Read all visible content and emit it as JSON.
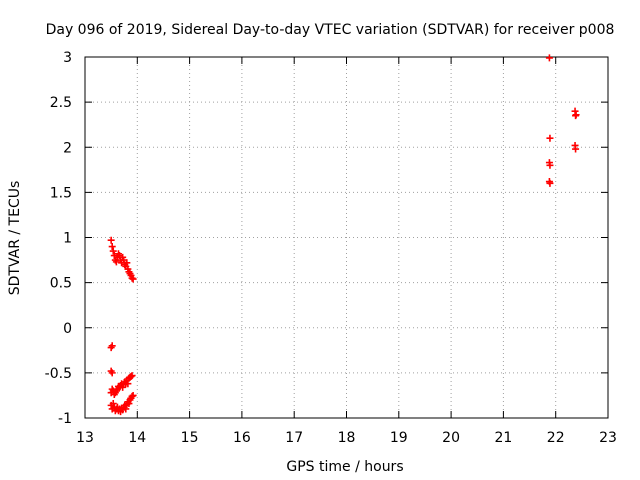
{
  "chart_data": {
    "type": "scatter",
    "title": "Day 096 of 2019, Sidereal Day-to-day VTEC variation (SDTVAR) for receiver p008",
    "xlabel": "GPS time / hours",
    "ylabel": "SDTVAR / TECUs",
    "xlim": [
      13,
      23
    ],
    "ylim": [
      -1,
      3
    ],
    "xticks": [
      13,
      14,
      15,
      16,
      17,
      18,
      19,
      20,
      21,
      22,
      23
    ],
    "yticks": [
      -1,
      -0.5,
      0,
      0.5,
      1,
      1.5,
      2,
      2.5,
      3
    ],
    "xtick_labels": [
      "13",
      "14",
      "15",
      "16",
      "17",
      "18",
      "19",
      "20",
      "21",
      "22",
      "23"
    ],
    "ytick_labels": [
      "-1",
      "-0.5",
      "0",
      "0.5",
      "1",
      "1.5",
      "2",
      "2.5",
      "3"
    ],
    "grid": true,
    "marker": "plus",
    "marker_color": "#ff0000",
    "series": [
      {
        "name": "SDTVAR",
        "x": [
          13.5,
          13.52,
          13.54,
          13.56,
          13.58,
          13.6,
          13.62,
          13.64,
          13.66,
          13.68,
          13.7,
          13.72,
          13.74,
          13.76,
          13.78,
          13.8,
          13.82,
          13.84,
          13.86,
          13.88,
          13.9,
          13.92,
          13.5,
          13.52,
          13.5,
          13.52,
          13.5,
          13.52,
          13.54,
          13.56,
          13.58,
          13.6,
          13.62,
          13.64,
          13.66,
          13.68,
          13.7,
          13.72,
          13.74,
          13.76,
          13.78,
          13.8,
          13.82,
          13.84,
          13.86,
          13.88,
          13.9,
          13.5,
          13.52,
          13.54,
          13.56,
          13.58,
          13.6,
          13.62,
          13.64,
          13.66,
          13.68,
          13.7,
          13.72,
          13.74,
          13.76,
          13.78,
          13.8,
          13.82,
          13.84,
          13.86,
          13.88,
          13.9,
          13.92,
          21.88,
          21.89,
          21.88,
          21.89,
          21.88,
          21.89,
          22.37,
          22.38,
          22.37,
          22.38,
          22.39
        ],
        "y": [
          0.97,
          0.9,
          0.85,
          0.8,
          0.75,
          0.73,
          0.78,
          0.82,
          0.8,
          0.75,
          0.72,
          0.78,
          0.75,
          0.7,
          0.68,
          0.72,
          0.65,
          0.62,
          0.6,
          0.58,
          0.55,
          0.54,
          -0.22,
          -0.2,
          -0.48,
          -0.5,
          -0.72,
          -0.68,
          -0.7,
          -0.74,
          -0.72,
          -0.7,
          -0.68,
          -0.65,
          -0.66,
          -0.64,
          -0.62,
          -0.66,
          -0.63,
          -0.6,
          -0.62,
          -0.58,
          -0.62,
          -0.56,
          -0.55,
          -0.54,
          -0.53,
          -0.86,
          -0.9,
          -0.84,
          -0.88,
          -0.92,
          -0.9,
          -0.88,
          -0.92,
          -0.9,
          -0.93,
          -0.89,
          -0.91,
          -0.88,
          -0.86,
          -0.9,
          -0.85,
          -0.82,
          -0.84,
          -0.8,
          -0.78,
          -0.76,
          -0.75,
          2.99,
          2.1,
          1.83,
          1.8,
          1.62,
          1.6,
          2.4,
          2.35,
          2.02,
          1.98,
          2.36
        ]
      }
    ]
  }
}
